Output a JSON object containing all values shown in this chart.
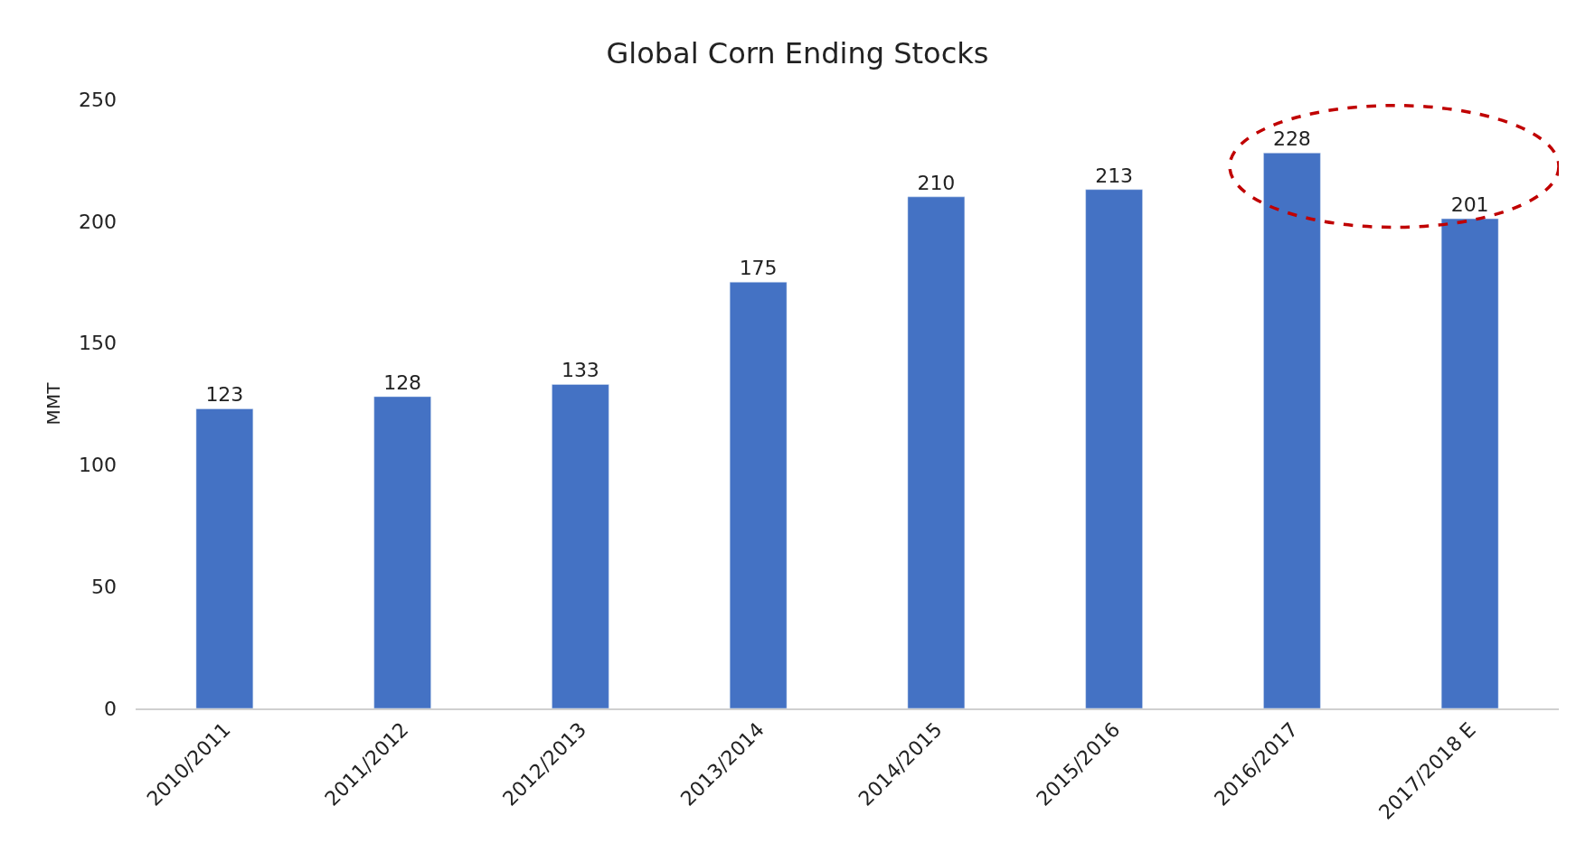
{
  "chart_data": {
    "type": "bar",
    "title": "Global Corn Ending Stocks",
    "ylabel": "MMT",
    "categories": [
      "2010/2011",
      "2011/2012",
      "2012/2013",
      "2013/2014",
      "2014/2015",
      "2015/2016",
      "2016/2017",
      "2017/2018 E"
    ],
    "values": [
      123,
      128,
      133,
      175,
      210,
      213,
      228,
      201
    ],
    "color": "#4472c4",
    "ylim": [
      0,
      250
    ],
    "yticks": [
      0,
      50,
      100,
      150,
      200,
      250
    ],
    "data_labels": true
  }
}
